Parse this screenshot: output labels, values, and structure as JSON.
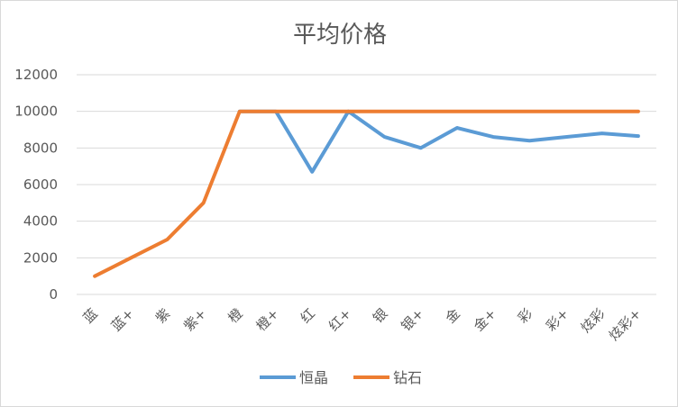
{
  "chart_data": {
    "type": "line",
    "title": "平均价格",
    "xlabel": "",
    "ylabel": "",
    "ylim": [
      0,
      12000
    ],
    "yticks": [
      "0",
      "2000",
      "4000",
      "6000",
      "8000",
      "10000",
      "12000"
    ],
    "categories": [
      "蓝",
      "蓝+",
      "紫",
      "紫+",
      "橙",
      "橙+",
      "红",
      "红+",
      "银",
      "银+",
      "金",
      "金+",
      "彩",
      "彩+",
      "炫彩",
      "炫彩+"
    ],
    "grid": true,
    "legend_position": "bottom",
    "series": [
      {
        "name": "恒晶",
        "color": "#5b9bd5",
        "values": [
          null,
          null,
          null,
          null,
          10000,
          10000,
          6700,
          10000,
          8600,
          8000,
          9100,
          8600,
          8400,
          8600,
          8800,
          8650
        ]
      },
      {
        "name": "钻石",
        "color": "#ed7d31",
        "values": [
          1000,
          2000,
          3000,
          5000,
          10000,
          10000,
          10000,
          10000,
          10000,
          10000,
          10000,
          10000,
          10000,
          10000,
          10000,
          10000
        ]
      }
    ]
  }
}
